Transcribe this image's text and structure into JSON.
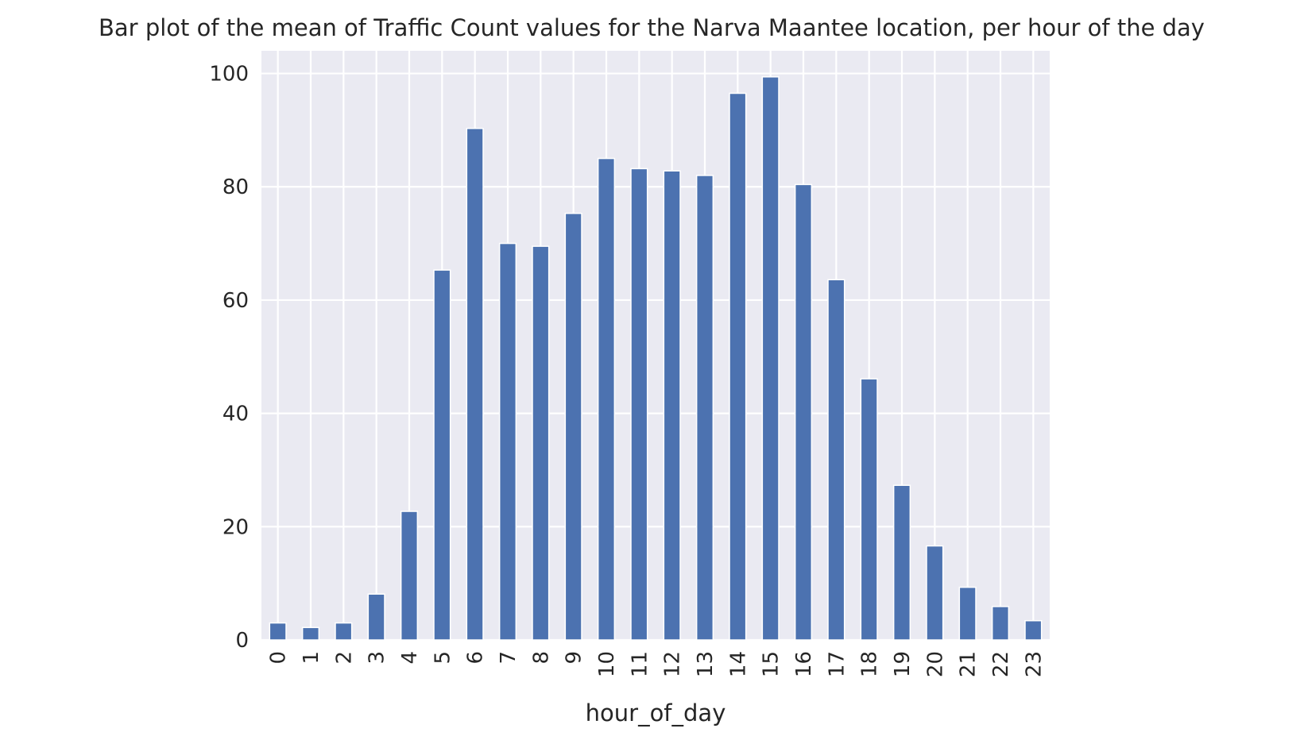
{
  "chart_data": {
    "type": "bar",
    "title": "Bar plot of the mean of Traffic Count values for the Narva Maantee location, per hour of the day",
    "xlabel": "hour_of_day",
    "ylabel": "",
    "categories": [
      "0",
      "1",
      "2",
      "3",
      "4",
      "5",
      "6",
      "7",
      "8",
      "9",
      "10",
      "11",
      "12",
      "13",
      "14",
      "15",
      "16",
      "17",
      "18",
      "19",
      "20",
      "21",
      "22",
      "23"
    ],
    "values": [
      3.0,
      2.2,
      3.0,
      8.1,
      22.7,
      65.3,
      90.3,
      70.0,
      69.5,
      75.3,
      85.0,
      83.2,
      82.8,
      82.0,
      96.5,
      99.4,
      80.4,
      63.6,
      46.1,
      27.3,
      16.6,
      9.3,
      5.9,
      3.4
    ],
    "ylim": [
      0,
      104
    ],
    "yticks": [
      0,
      20,
      40,
      60,
      80,
      100
    ],
    "grid": true,
    "legend": "none",
    "colors": {
      "bar": "#4c72b0",
      "plot_background": "#eaeaf2",
      "grid": "#ffffff",
      "text": "#262626"
    }
  }
}
